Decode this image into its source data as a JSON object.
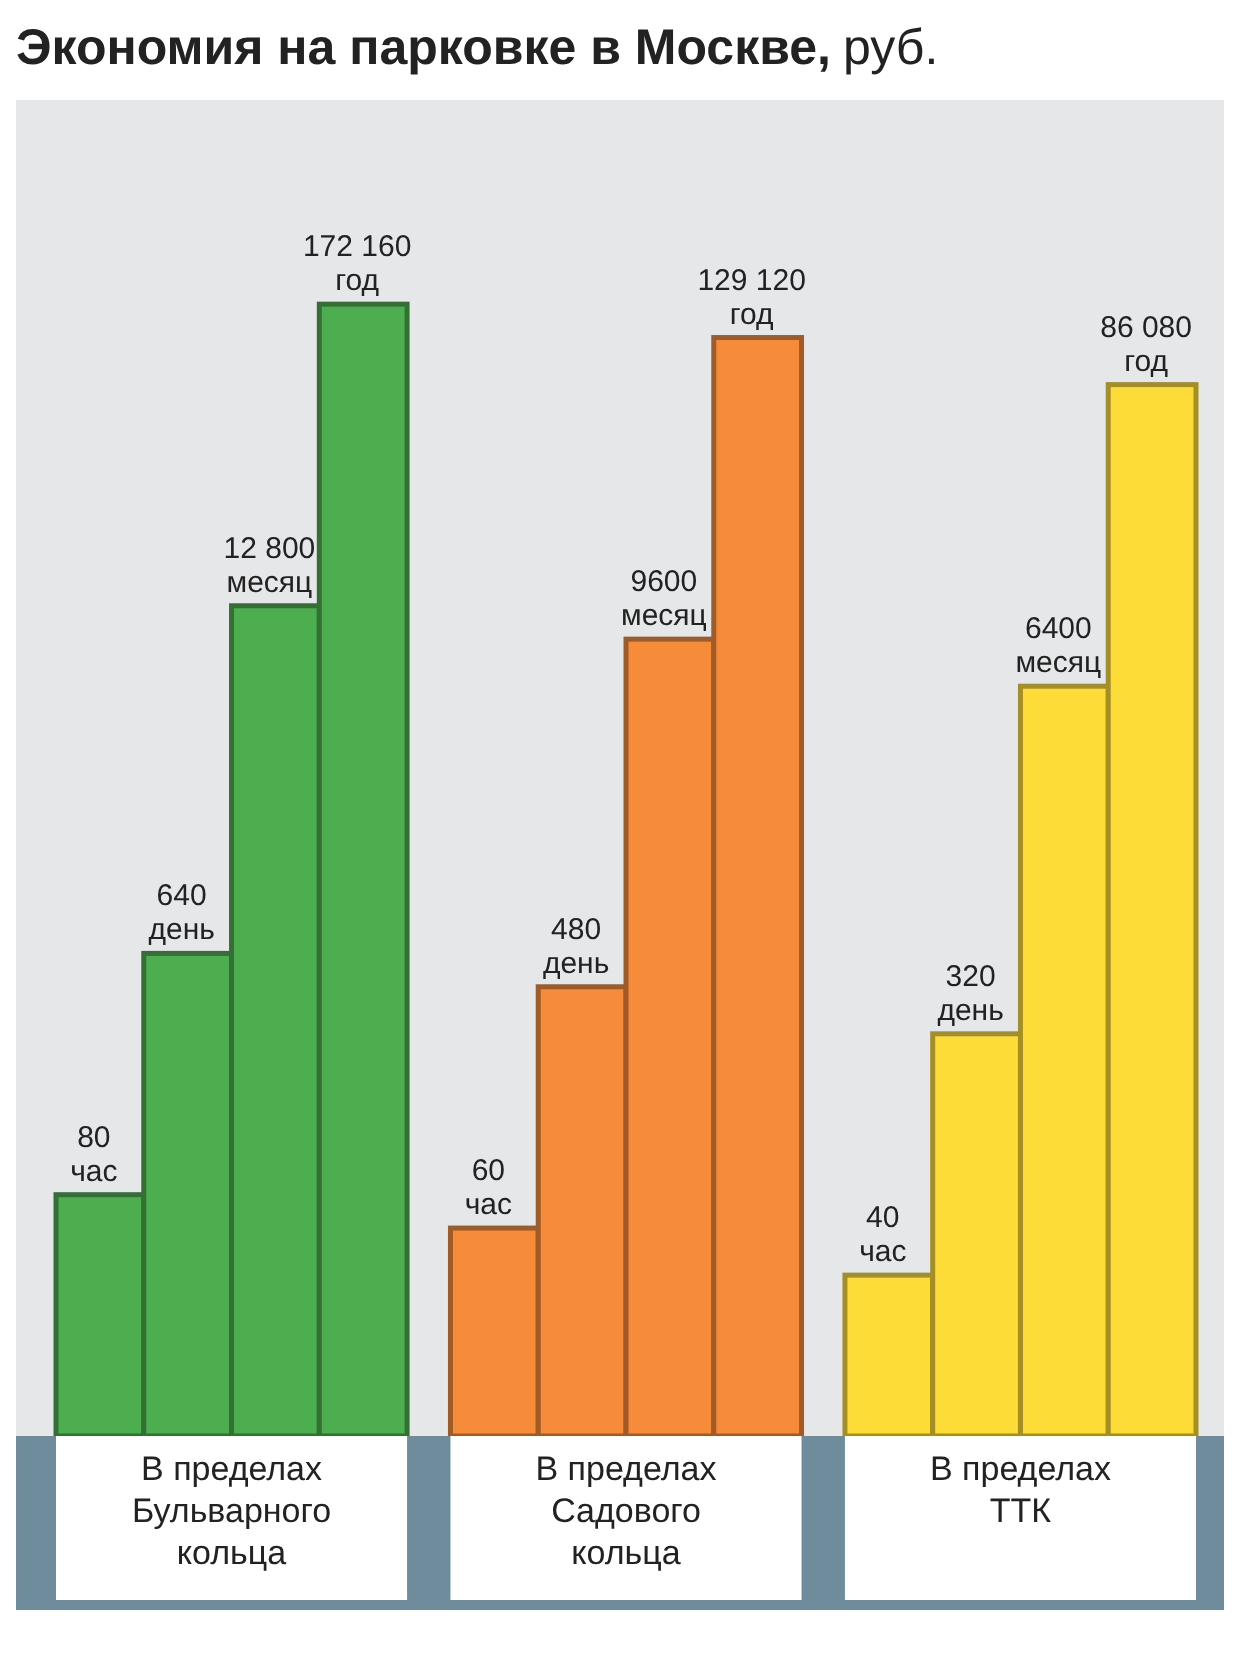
{
  "chart_data": {
    "type": "bar",
    "title": "Экономия на парковке в Москве,",
    "subtitle": "руб.",
    "categories": [
      "В пределах Бульварного кольца",
      "В пределах Садового кольца",
      "В пределах ТТК"
    ],
    "log": true,
    "ylim": [
      10,
      1000000
    ],
    "tick_labels": "x",
    "series": [
      {
        "name": "час",
        "colors": [
          "#4cae4f",
          "#f68b3a",
          "#fddc37"
        ],
        "values": [
          80,
          60,
          40
        ],
        "value_labels": [
          "80",
          "60",
          "40"
        ]
      },
      {
        "name": "день",
        "colors": [
          "#4cae4f",
          "#f68b3a",
          "#fddc37"
        ],
        "values": [
          640,
          480,
          320
        ],
        "value_labels": [
          "640",
          "480",
          "320"
        ]
      },
      {
        "name": "месяц",
        "colors": [
          "#4cae4f",
          "#f68b3a",
          "#fddc37"
        ],
        "values": [
          12800,
          9600,
          6400
        ],
        "value_labels": [
          "12 800",
          "9600",
          "6400"
        ]
      },
      {
        "name": "год",
        "colors": [
          "#4cae4f",
          "#f68b3a",
          "#fddc37"
        ],
        "values": [
          172160,
          129120,
          86080
        ],
        "value_labels": [
          "172 160",
          "129 120",
          "86 080"
        ]
      }
    ]
  }
}
